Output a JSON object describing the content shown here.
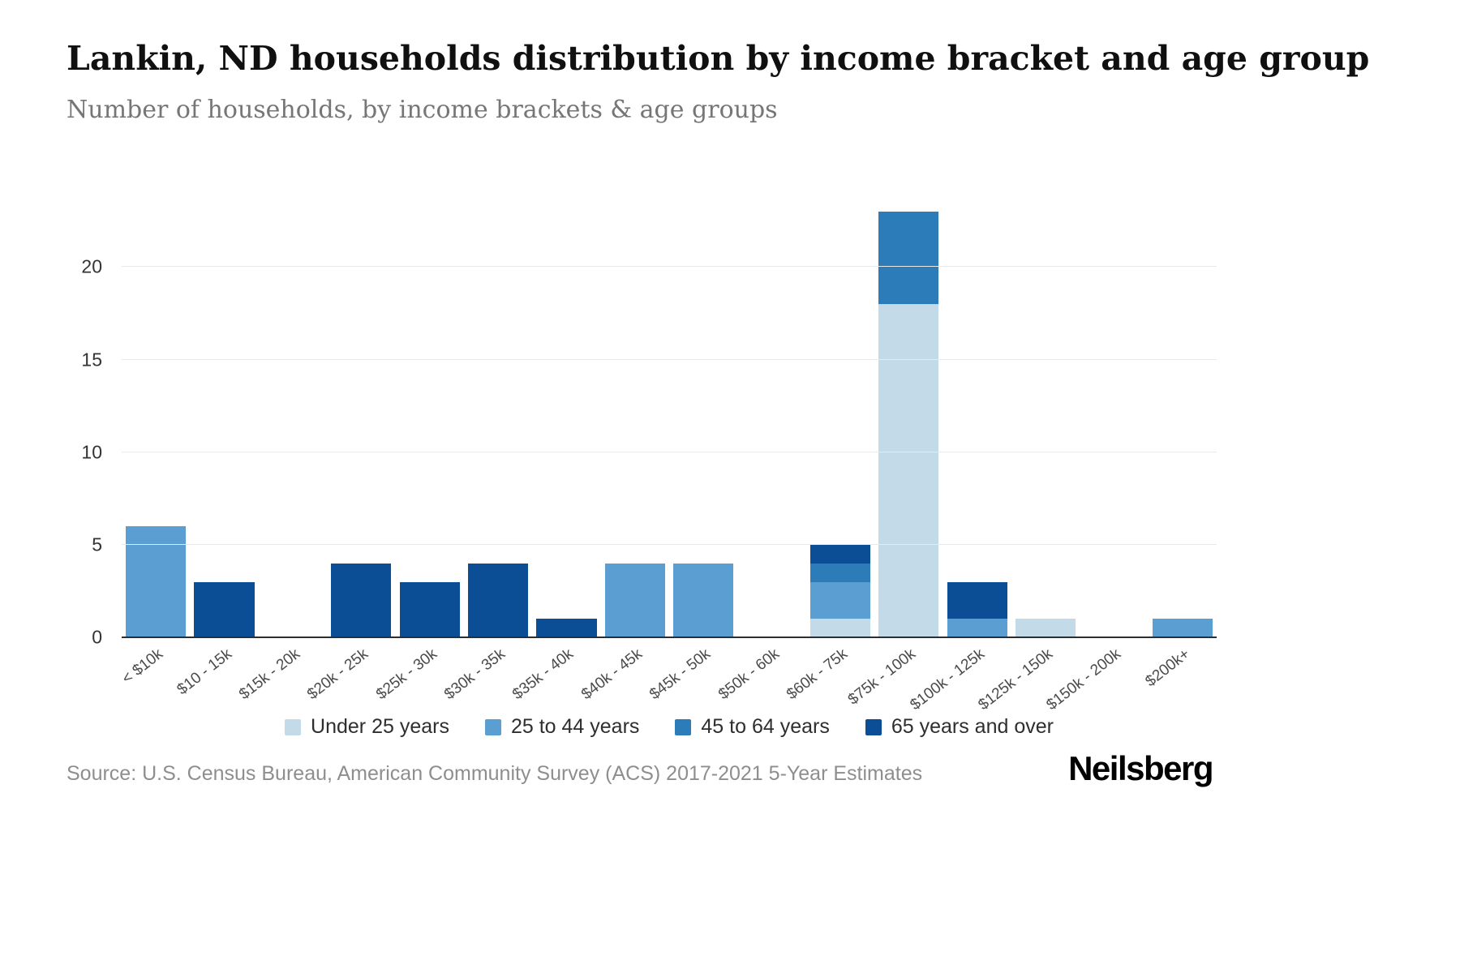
{
  "header": {
    "title": "Lankin, ND households distribution by income bracket and age group",
    "subtitle": "Number of households, by income brackets & age groups"
  },
  "chart_data": {
    "type": "bar",
    "stacked": true,
    "title": "Lankin, ND households distribution by income bracket and age group",
    "subtitle": "Number of households, by income brackets & age groups",
    "xlabel": "",
    "ylabel": "",
    "categories": [
      "< $10k",
      "$10 - 15k",
      "$15k - 20k",
      "$20k - 25k",
      "$25k - 30k",
      "$30k - 35k",
      "$35k - 40k",
      "$40k - 45k",
      "$45k - 50k",
      "$50k - 60k",
      "$60k - 75k",
      "$75k - 100k",
      "$100k - 125k",
      "$125k - 150k",
      "$150k - 200k",
      "$200k+"
    ],
    "series": [
      {
        "name": "Under 25 years",
        "color": "#c3dbe9",
        "values": [
          0,
          0,
          0,
          0,
          0,
          0,
          0,
          0,
          0,
          0,
          1,
          18,
          0,
          1,
          0,
          0
        ]
      },
      {
        "name": "25 to 44 years",
        "color": "#5b9ed2",
        "values": [
          6,
          0,
          0,
          0,
          0,
          0,
          0,
          4,
          4,
          0,
          2,
          0,
          1,
          0,
          0,
          1
        ]
      },
      {
        "name": "45 to 64 years",
        "color": "#2d7cba",
        "values": [
          0,
          0,
          0,
          0,
          0,
          0,
          0,
          0,
          0,
          0,
          1,
          5,
          0,
          0,
          0,
          0
        ]
      },
      {
        "name": "65 years and over",
        "color": "#0b4e95",
        "values": [
          0,
          3,
          0,
          4,
          3,
          4,
          1,
          0,
          0,
          0,
          1,
          0,
          2,
          0,
          0,
          0
        ]
      }
    ],
    "y_ticks": [
      0,
      5,
      10,
      15,
      20
    ],
    "ylim": [
      0,
      24
    ],
    "grid": true,
    "legend_position": "bottom"
  },
  "footer": {
    "source": "Source: U.S. Census Bureau, American Community Survey (ACS) 2017-2021 5-Year Estimates",
    "brand": "Neilsberg"
  }
}
